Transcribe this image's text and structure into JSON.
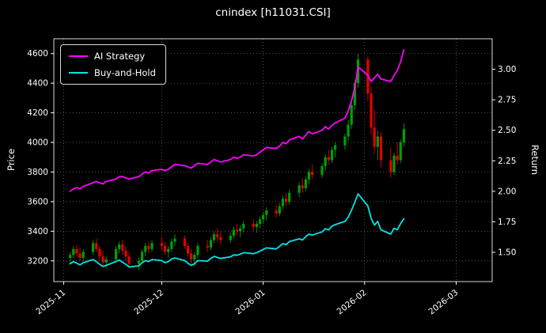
{
  "title": "cnindex [h11031.CSI]",
  "axes": {
    "left_label": "Price",
    "right_label": "Return"
  },
  "legend": {
    "items": [
      {
        "label": "AI Strategy",
        "color": "#ff00ff"
      },
      {
        "label": "Buy-and-Hold",
        "color": "#00e5e5"
      }
    ]
  },
  "colors": {
    "background": "#000000",
    "text": "#ffffff",
    "grid": "#666666",
    "up": "#00a000",
    "down": "#e60000"
  },
  "chart_data": {
    "type": "candlestick",
    "title": "cnindex [h11031.CSI]",
    "xlabel": "",
    "ylabel_left": "Price",
    "ylabel_right": "Return",
    "grid": true,
    "legend_position": "upper left",
    "x_range": [
      "2025-10-29",
      "2026-03-12"
    ],
    "price_axis": {
      "min": 3060,
      "max": 4700,
      "ticks": [
        3200,
        3400,
        3600,
        3800,
        4000,
        4200,
        4400,
        4600
      ]
    },
    "return_axis": {
      "min": 1.26,
      "max": 3.25,
      "ticks": [
        1.5,
        1.75,
        2.0,
        2.25,
        2.5,
        2.75,
        3.0
      ]
    },
    "x_ticks": [
      {
        "date": "2025-11-01",
        "label": "2025-11"
      },
      {
        "date": "2025-12-01",
        "label": "2025-12"
      },
      {
        "date": "2026-01-01",
        "label": "2026-01"
      },
      {
        "date": "2026-02-01",
        "label": "2026-02"
      },
      {
        "date": "2026-03-01",
        "label": "2026-03"
      }
    ],
    "up_color": "#00a000",
    "down_color": "#e60000",
    "dates": [
      "2025-11-03",
      "2025-11-04",
      "2025-11-05",
      "2025-11-06",
      "2025-11-07",
      "2025-11-10",
      "2025-11-11",
      "2025-11-12",
      "2025-11-13",
      "2025-11-14",
      "2025-11-17",
      "2025-11-18",
      "2025-11-19",
      "2025-11-20",
      "2025-11-21",
      "2025-11-24",
      "2025-11-25",
      "2025-11-26",
      "2025-11-27",
      "2025-11-28",
      "2025-12-01",
      "2025-12-02",
      "2025-12-03",
      "2025-12-04",
      "2025-12-05",
      "2025-12-08",
      "2025-12-09",
      "2025-12-10",
      "2025-12-11",
      "2025-12-12",
      "2025-12-15",
      "2025-12-16",
      "2025-12-17",
      "2025-12-18",
      "2025-12-19",
      "2025-12-22",
      "2025-12-23",
      "2025-12-24",
      "2025-12-25",
      "2025-12-26",
      "2025-12-29",
      "2025-12-30",
      "2025-12-31",
      "2026-01-01",
      "2026-01-02",
      "2026-01-05",
      "2026-01-06",
      "2026-01-07",
      "2026-01-08",
      "2026-01-09",
      "2026-01-12",
      "2026-01-13",
      "2026-01-14",
      "2026-01-15",
      "2026-01-16",
      "2026-01-19",
      "2026-01-20",
      "2026-01-21",
      "2026-01-22",
      "2026-01-23",
      "2026-01-26",
      "2026-01-27",
      "2026-01-28",
      "2026-01-29",
      "2026-01-30",
      "2026-02-02",
      "2026-02-03",
      "2026-02-04",
      "2026-02-05",
      "2026-02-06",
      "2026-02-09",
      "2026-02-10",
      "2026-02-11",
      "2026-02-12",
      "2026-02-13"
    ],
    "ohlc": [
      [
        3220,
        3260,
        3180,
        3240
      ],
      [
        3240,
        3300,
        3220,
        3280
      ],
      [
        3280,
        3310,
        3230,
        3250
      ],
      [
        3250,
        3290,
        3200,
        3220
      ],
      [
        3220,
        3280,
        3200,
        3260
      ],
      [
        3260,
        3340,
        3240,
        3320
      ],
      [
        3320,
        3350,
        3260,
        3280
      ],
      [
        3280,
        3300,
        3200,
        3230
      ],
      [
        3230,
        3270,
        3160,
        3190
      ],
      [
        3190,
        3230,
        3150,
        3210
      ],
      [
        3210,
        3300,
        3190,
        3280
      ],
      [
        3280,
        3330,
        3250,
        3310
      ],
      [
        3310,
        3340,
        3240,
        3270
      ],
      [
        3270,
        3300,
        3200,
        3230
      ],
      [
        3230,
        3260,
        3150,
        3180
      ],
      [
        3180,
        3220,
        3140,
        3200
      ],
      [
        3200,
        3280,
        3180,
        3260
      ],
      [
        3260,
        3320,
        3230,
        3300
      ],
      [
        3300,
        3330,
        3250,
        3280
      ],
      [
        3280,
        3340,
        3260,
        3320
      ],
      [
        3320,
        3360,
        3270,
        3300
      ],
      [
        3300,
        3330,
        3240,
        3260
      ],
      [
        3260,
        3300,
        3220,
        3280
      ],
      [
        3280,
        3350,
        3260,
        3330
      ],
      [
        3330,
        3380,
        3300,
        3350
      ],
      [
        3350,
        3370,
        3280,
        3300
      ],
      [
        3300,
        3320,
        3230,
        3250
      ],
      [
        3250,
        3280,
        3180,
        3210
      ],
      [
        3210,
        3260,
        3170,
        3240
      ],
      [
        3240,
        3320,
        3220,
        3300
      ],
      [
        3300,
        3340,
        3260,
        3290
      ],
      [
        3290,
        3360,
        3270,
        3340
      ],
      [
        3340,
        3400,
        3320,
        3380
      ],
      [
        3380,
        3420,
        3330,
        3360
      ],
      [
        3360,
        3400,
        3310,
        3340
      ],
      [
        3340,
        3390,
        3320,
        3370
      ],
      [
        3370,
        3430,
        3350,
        3410
      ],
      [
        3410,
        3450,
        3370,
        3400
      ],
      [
        3400,
        3440,
        3360,
        3420
      ],
      [
        3420,
        3470,
        3390,
        3450
      ],
      [
        3450,
        3480,
        3400,
        3430
      ],
      [
        3430,
        3470,
        3390,
        3450
      ],
      [
        3450,
        3500,
        3420,
        3480
      ],
      [
        3480,
        3530,
        3450,
        3510
      ],
      [
        3510,
        3560,
        3470,
        3540
      ],
      [
        3540,
        3580,
        3490,
        3520
      ],
      [
        3520,
        3590,
        3500,
        3570
      ],
      [
        3570,
        3640,
        3550,
        3620
      ],
      [
        3620,
        3660,
        3570,
        3600
      ],
      [
        3600,
        3680,
        3580,
        3660
      ],
      [
        3660,
        3730,
        3630,
        3710
      ],
      [
        3710,
        3760,
        3660,
        3690
      ],
      [
        3690,
        3770,
        3670,
        3750
      ],
      [
        3750,
        3820,
        3720,
        3800
      ],
      [
        3800,
        3850,
        3750,
        3780
      ],
      [
        3780,
        3860,
        3760,
        3840
      ],
      [
        3840,
        3920,
        3810,
        3900
      ],
      [
        3900,
        3950,
        3850,
        3880
      ],
      [
        3880,
        3970,
        3860,
        3950
      ],
      [
        3950,
        4000,
        3900,
        3980
      ],
      [
        3980,
        4060,
        3950,
        4040
      ],
      [
        4040,
        4150,
        4010,
        4120
      ],
      [
        4120,
        4280,
        4090,
        4250
      ],
      [
        4250,
        4420,
        4220,
        4400
      ],
      [
        4400,
        4600,
        4370,
        4560
      ],
      [
        4560,
        4580,
        4280,
        4330
      ],
      [
        4330,
        4380,
        4050,
        4100
      ],
      [
        4100,
        4220,
        3920,
        3970
      ],
      [
        3970,
        4080,
        3880,
        4040
      ],
      [
        4040,
        4070,
        3830,
        3880
      ],
      [
        3880,
        3960,
        3760,
        3800
      ],
      [
        3800,
        3930,
        3780,
        3910
      ],
      [
        3910,
        4000,
        3850,
        3880
      ],
      [
        3880,
        4020,
        3860,
        4000
      ],
      [
        4000,
        4130,
        3970,
        4090
      ]
    ],
    "series": [
      {
        "name": "AI Strategy",
        "axis": "return",
        "color": "#ff00ff",
        "values": [
          2.0,
          2.02,
          2.03,
          2.02,
          2.04,
          2.07,
          2.08,
          2.07,
          2.06,
          2.08,
          2.1,
          2.12,
          2.12,
          2.11,
          2.1,
          2.12,
          2.14,
          2.16,
          2.15,
          2.17,
          2.18,
          2.17,
          2.18,
          2.2,
          2.22,
          2.21,
          2.2,
          2.19,
          2.21,
          2.23,
          2.22,
          2.24,
          2.26,
          2.25,
          2.24,
          2.26,
          2.28,
          2.27,
          2.28,
          2.3,
          2.29,
          2.3,
          2.32,
          2.34,
          2.36,
          2.35,
          2.37,
          2.4,
          2.39,
          2.42,
          2.45,
          2.43,
          2.46,
          2.49,
          2.47,
          2.5,
          2.53,
          2.51,
          2.54,
          2.56,
          2.6,
          2.66,
          2.74,
          2.85,
          3.02,
          2.95,
          2.9,
          2.93,
          2.96,
          2.92,
          2.9,
          2.95,
          2.99,
          3.06,
          3.16
        ]
      },
      {
        "name": "Buy-and-Hold",
        "axis": "return",
        "color": "#00e5e5",
        "values": [
          1.406,
          1.424,
          1.411,
          1.397,
          1.415,
          1.441,
          1.424,
          1.402,
          1.384,
          1.393,
          1.424,
          1.437,
          1.419,
          1.402,
          1.38,
          1.389,
          1.415,
          1.432,
          1.424,
          1.441,
          1.432,
          1.415,
          1.424,
          1.445,
          1.454,
          1.432,
          1.411,
          1.393,
          1.406,
          1.432,
          1.428,
          1.45,
          1.467,
          1.458,
          1.45,
          1.463,
          1.48,
          1.476,
          1.484,
          1.497,
          1.489,
          1.497,
          1.51,
          1.523,
          1.536,
          1.528,
          1.549,
          1.571,
          1.562,
          1.588,
          1.61,
          1.601,
          1.628,
          1.649,
          1.641,
          1.667,
          1.693,
          1.684,
          1.714,
          1.727,
          1.753,
          1.788,
          1.845,
          1.91,
          1.979,
          1.879,
          1.779,
          1.723,
          1.753,
          1.684,
          1.649,
          1.697,
          1.684,
          1.736,
          1.775
        ]
      }
    ]
  }
}
